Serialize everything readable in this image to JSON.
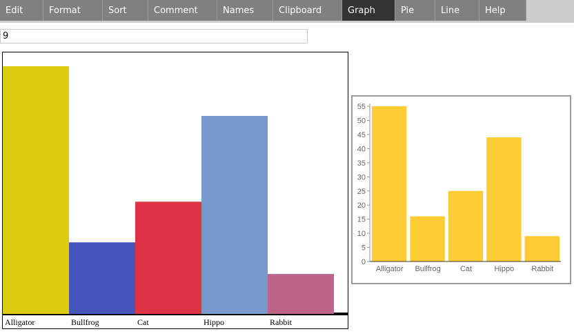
{
  "menu": [
    "Edit",
    "Format",
    "Sort",
    "Comment",
    "Names",
    "Clipboard",
    "Graph",
    "Pie",
    "Line",
    "Help"
  ],
  "active_menu": "Graph",
  "input": {
    "value": "9"
  },
  "chart_data": [
    {
      "type": "bar",
      "categories": [
        "Alligator",
        "Bullfrog",
        "Cat",
        "Hippo",
        "Rabbit"
      ],
      "values": [
        55,
        16,
        25,
        44,
        9
      ],
      "colors": [
        "#ddcc11",
        "#4455bb",
        "#dd3344",
        "#7799cc",
        "#bb6688"
      ]
    },
    {
      "type": "bar",
      "categories": [
        "Alligator",
        "Bullfrog",
        "Cat",
        "Hippo",
        "Rabbit"
      ],
      "values": [
        55,
        16,
        25,
        44,
        9
      ],
      "color": "#ffcc33",
      "ylim": [
        0,
        56
      ],
      "yticks": [
        0,
        5,
        10,
        15,
        20,
        25,
        30,
        35,
        40,
        45,
        50,
        55
      ]
    }
  ]
}
